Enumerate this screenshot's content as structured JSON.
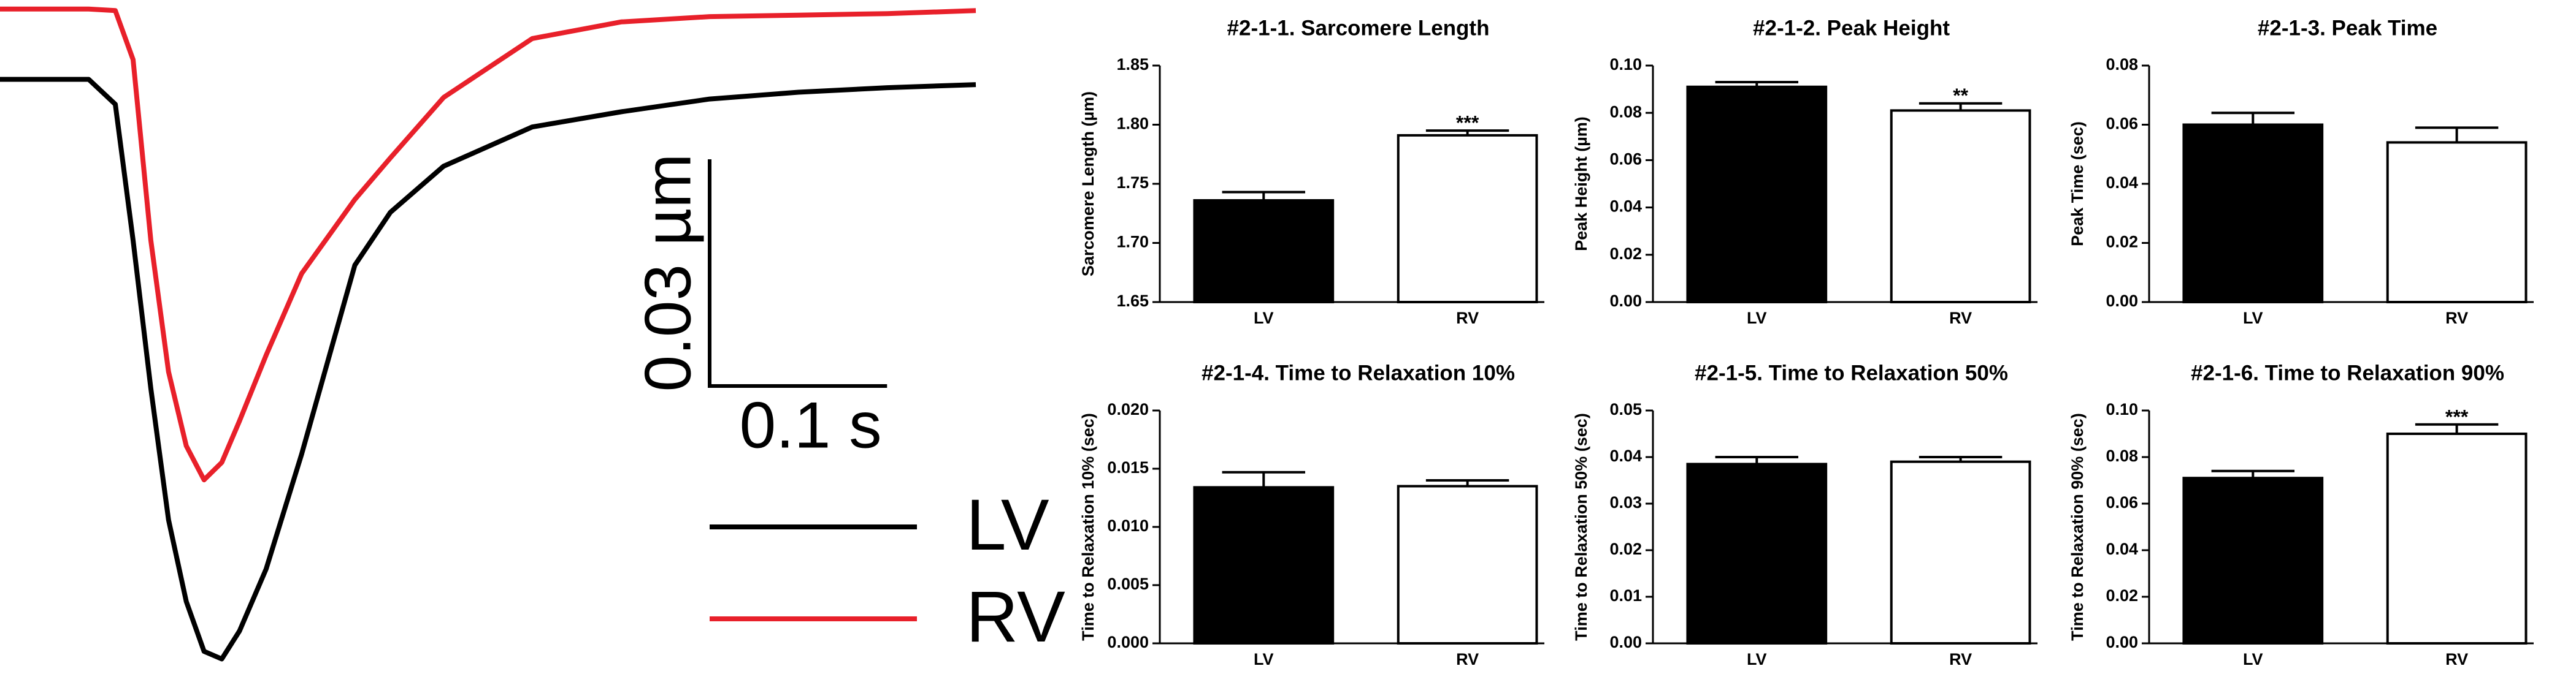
{
  "chart_data": [
    {
      "type": "line",
      "x": [
        0,
        0.05,
        0.065,
        0.075,
        0.085,
        0.095,
        0.105,
        0.115,
        0.125,
        0.135,
        0.15,
        0.17,
        0.2,
        0.22,
        0.25,
        0.3,
        0.35,
        0.4,
        0.45,
        0.5,
        0.55
      ],
      "xlim": [
        0,
        0.55
      ],
      "ylim": [
        -0.0795,
        0.0105
      ],
      "series": [
        {
          "name": "LV",
          "color": "#000000",
          "values": [
            0,
            0,
            -0.0033,
            -0.0213,
            -0.0409,
            -0.0583,
            -0.0691,
            -0.0757,
            -0.0767,
            -0.073,
            -0.0648,
            -0.0496,
            -0.0246,
            -0.0176,
            -0.0115,
            -0.0063,
            -0.0043,
            -0.0026,
            -0.0017,
            -0.0011,
            -0.0007
          ]
        },
        {
          "name": "RV",
          "color": "#e8202a",
          "values": [
            0.0093,
            0.0093,
            0.0091,
            0.0026,
            -0.0213,
            -0.0387,
            -0.0485,
            -0.053,
            -0.0507,
            -0.0452,
            -0.0365,
            -0.0257,
            -0.0159,
            -0.0104,
            -0.0024,
            0.0054,
            0.0076,
            0.0083,
            0.0085,
            0.0087,
            0.0091
          ]
        }
      ],
      "scalebar": {
        "x": {
          "value": 0.1,
          "label": "0.1 s"
        },
        "y": {
          "value": 0.03,
          "label": "0.03 µm"
        }
      }
    },
    {
      "type": "bar",
      "title": "#2-1-1. Sarcomere Length",
      "ylabel": "Sarcomere Length (µm)",
      "categories": [
        "LV",
        "RV"
      ],
      "values": [
        1.736,
        1.791
      ],
      "errors": [
        0.007,
        0.004
      ],
      "colors": [
        "#000000",
        "#ffffff"
      ],
      "annotations": [
        null,
        "***"
      ],
      "ylim": [
        1.65,
        1.85
      ],
      "yticks": [
        1.65,
        {
          "value": 1.7,
          "label": "1.70"
        },
        1.75,
        {
          "value": 1.8,
          "label": "1.80"
        },
        1.85
      ]
    },
    {
      "type": "bar",
      "title": "#2-1-2. Peak Height",
      "ylabel": "Peak Height (µm)",
      "categories": [
        "LV",
        "RV"
      ],
      "values": [
        0.091,
        0.081
      ],
      "errors": [
        0.002,
        0.003
      ],
      "colors": [
        "#000000",
        "#ffffff"
      ],
      "annotations": [
        null,
        "**"
      ],
      "ylim": [
        0,
        0.1
      ],
      "yticks": [
        {
          "value": 0,
          "label": "0.00"
        },
        0.02,
        0.04,
        0.06,
        0.08,
        {
          "value": 0.1,
          "label": "0.10"
        }
      ]
    },
    {
      "type": "bar",
      "title": "#2-1-3. Peak Time",
      "ylabel": "Peak Time (sec)",
      "categories": [
        "LV",
        "RV"
      ],
      "values": [
        0.06,
        0.054
      ],
      "errors": [
        0.004,
        0.005
      ],
      "colors": [
        "#000000",
        "#ffffff"
      ],
      "ylim": [
        0,
        0.08
      ],
      "yticks": [
        {
          "value": 0,
          "label": "0.00"
        },
        0.02,
        0.04,
        0.06,
        0.08
      ]
    },
    {
      "type": "bar",
      "title": "#2-1-4. Time to Relaxation 10%",
      "ylabel": "Time to Relaxation 10% (sec)",
      "categories": [
        "LV",
        "RV"
      ],
      "values": [
        0.0134,
        0.0135
      ],
      "errors": [
        0.0013,
        0.0005
      ],
      "colors": [
        "#000000",
        "#ffffff"
      ],
      "ylim": [
        0,
        0.02
      ],
      "yticks": [
        {
          "value": 0,
          "label": "0.000"
        },
        0.005,
        {
          "value": 0.01,
          "label": "0.010"
        },
        0.015,
        {
          "value": 0.02,
          "label": "0.020"
        }
      ]
    },
    {
      "type": "bar",
      "title": "#2-1-5. Time to Relaxation 50%",
      "ylabel": "Time to Relaxation 50% (sec)",
      "categories": [
        "LV",
        "RV"
      ],
      "values": [
        0.0385,
        0.039
      ],
      "errors": [
        0.0015,
        0.001
      ],
      "colors": [
        "#000000",
        "#ffffff"
      ],
      "ylim": [
        0,
        0.05
      ],
      "yticks": [
        {
          "value": 0,
          "label": "0.00"
        },
        0.01,
        0.02,
        0.03,
        0.04,
        0.05
      ]
    },
    {
      "type": "bar",
      "title": "#2-1-6. Time to Relaxation 90%",
      "ylabel": "Time to Relaxation 90% (sec)",
      "categories": [
        "LV",
        "RV"
      ],
      "values": [
        0.071,
        0.09
      ],
      "errors": [
        0.003,
        0.004
      ],
      "colors": [
        "#000000",
        "#ffffff"
      ],
      "annotations": [
        null,
        "***"
      ],
      "ylim": [
        0,
        0.1
      ],
      "yticks": [
        {
          "value": 0,
          "label": "0.00"
        },
        0.02,
        0.04,
        0.06,
        0.08,
        {
          "value": 0.1,
          "label": "0.10"
        }
      ]
    }
  ]
}
